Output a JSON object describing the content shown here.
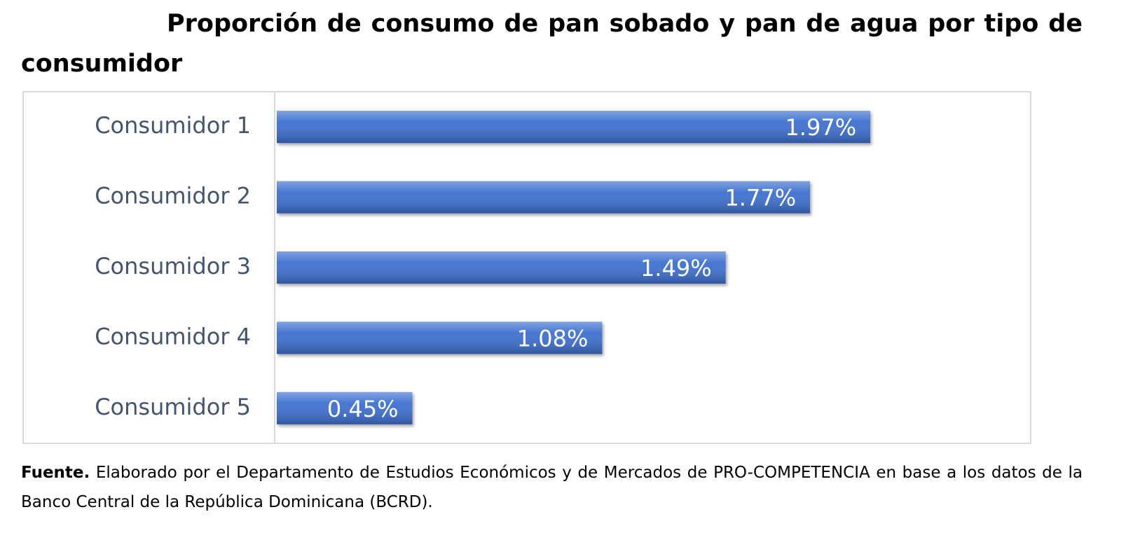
{
  "chart_data": {
    "type": "bar",
    "orientation": "horizontal",
    "title": "Proporción de consumo de pan sobado y pan de agua por tipo de consumidor",
    "categories": [
      "Consumidor 1",
      "Consumidor 2",
      "Consumidor 3",
      "Consumidor 4",
      "Consumidor 5"
    ],
    "values": [
      1.97,
      1.77,
      1.49,
      1.08,
      0.45
    ],
    "value_labels": [
      "1.97%",
      "1.77%",
      "1.49%",
      "1.08%",
      "0.45%"
    ],
    "color": "#3d6fd0",
    "xlim": [
      0,
      2.5
    ],
    "source_label": "Fuente.",
    "source_text": "Elaborado por el Departamento de Estudios Económicos y de Mercados de PRO-COMPETENCIA en base a los datos de la Banco Central de la República Dominicana (BCRD)."
  }
}
